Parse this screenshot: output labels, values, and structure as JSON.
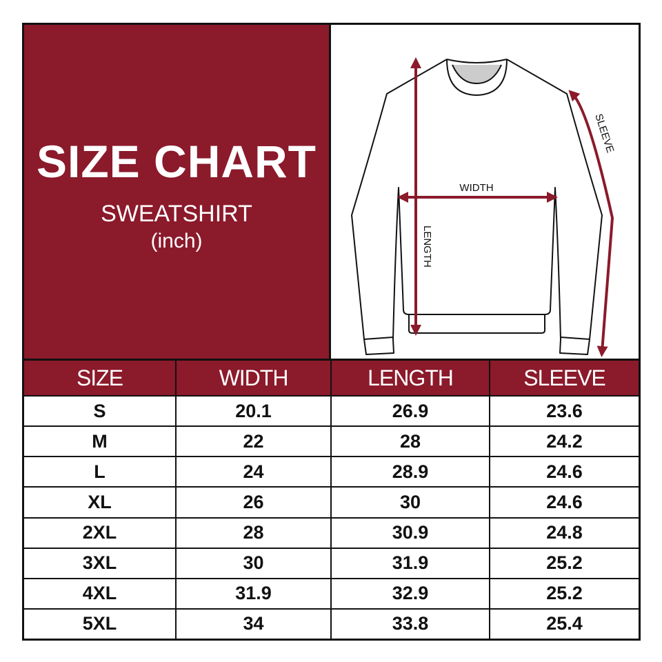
{
  "header": {
    "title": "SIZE CHART",
    "product": "SWEATSHIRT",
    "unit": "(inch)"
  },
  "diagram": {
    "width_label": "WIDTH",
    "length_label": "LENGTH",
    "sleeve_label": "SLEEVE",
    "arrow_color": "#8b1a2b"
  },
  "colors": {
    "brand": "#8b1a2b"
  },
  "table": {
    "headers": [
      "SIZE",
      "WIDTH",
      "LENGTH",
      "SLEEVE"
    ],
    "rows": [
      [
        "S",
        "20.1",
        "26.9",
        "23.6"
      ],
      [
        "M",
        "22",
        "28",
        "24.2"
      ],
      [
        "L",
        "24",
        "28.9",
        "24.6"
      ],
      [
        "XL",
        "26",
        "30",
        "24.6"
      ],
      [
        "2XL",
        "28",
        "30.9",
        "24.8"
      ],
      [
        "3XL",
        "30",
        "31.9",
        "25.2"
      ],
      [
        "4XL",
        "31.9",
        "32.9",
        "25.2"
      ],
      [
        "5XL",
        "34",
        "33.8",
        "25.4"
      ]
    ]
  }
}
